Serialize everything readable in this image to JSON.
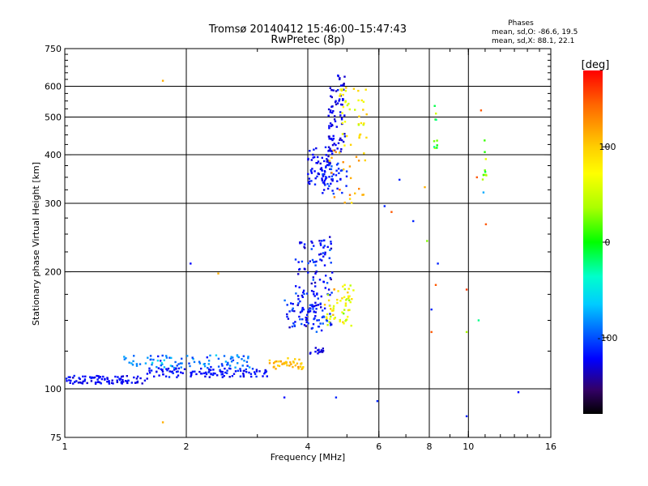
{
  "chart_data": {
    "type": "scatter",
    "title": "Tromsø 20140412 15:46:00–15:47:43",
    "subtitle": "RwPretec (8p)",
    "xlabel": "Frequency [MHz]",
    "ylabel": "Stationary phase Virtual Height [km]",
    "xscale": "log",
    "yscale": "log",
    "xlim": [
      1,
      16
    ],
    "ylim": [
      75,
      750
    ],
    "grid": true,
    "x_ticks": [
      1,
      2,
      4,
      6,
      8,
      10,
      16
    ],
    "x_tick_labels": [
      "1",
      "2",
      "4",
      "6",
      "8",
      "10",
      "16"
    ],
    "y_ticks": [
      75,
      100,
      200,
      300,
      400,
      500,
      600,
      750
    ],
    "y_tick_labels": [
      "75",
      "100",
      "200",
      "300",
      "400",
      "500",
      "600",
      "750"
    ],
    "grid_x": [
      2,
      4,
      6,
      8,
      10
    ],
    "grid_y": [
      100,
      200,
      300,
      400,
      500,
      600
    ],
    "colorbar": {
      "title": "[deg]",
      "range": [
        -180,
        180
      ],
      "ticks": [
        100,
        0,
        -100
      ],
      "tick_labels": [
        "100",
        "0",
        "-100"
      ]
    },
    "legend": {
      "title": "Phases",
      "lines": [
        "mean, sd,O: -86.6, 19.5",
        "mean, sd,X: 88.1, 22.1"
      ],
      "placement": "top-right"
    },
    "clusters": [
      {
        "f1": 1.0,
        "f2": 1.6,
        "h1": 103,
        "h2": 108,
        "phase": -112,
        "phase_sd": 10,
        "n": 90
      },
      {
        "f1": 1.6,
        "f2": 3.2,
        "h1": 107,
        "h2": 113,
        "phase": -108,
        "phase_sd": 12,
        "n": 110
      },
      {
        "f1": 1.4,
        "f2": 2.9,
        "h1": 113,
        "h2": 122,
        "phase": -75,
        "phase_sd": 25,
        "n": 90
      },
      {
        "f1": 3.2,
        "f2": 3.9,
        "h1": 112,
        "h2": 120,
        "phase": 115,
        "phase_sd": 15,
        "n": 40
      },
      {
        "f1": 3.5,
        "f2": 4.6,
        "h1": 140,
        "h2": 180,
        "phase": -105,
        "phase_sd": 20,
        "n": 110
      },
      {
        "f1": 3.7,
        "f2": 4.6,
        "h1": 180,
        "h2": 250,
        "phase": -110,
        "phase_sd": 25,
        "n": 70
      },
      {
        "f1": 4.0,
        "f2": 4.4,
        "h1": 123,
        "h2": 128,
        "phase": -120,
        "phase_sd": 8,
        "n": 14
      },
      {
        "f1": 4.4,
        "f2": 5.2,
        "h1": 145,
        "h2": 185,
        "phase": 75,
        "phase_sd": 40,
        "n": 60
      },
      {
        "f1": 4.0,
        "f2": 4.6,
        "h1": 335,
        "h2": 420,
        "phase": -110,
        "phase_sd": 12,
        "n": 70
      },
      {
        "f1": 4.5,
        "f2": 4.95,
        "h1": 400,
        "h2": 640,
        "phase": -115,
        "phase_sd": 12,
        "n": 80
      },
      {
        "f1": 4.3,
        "f2": 5.0,
        "h1": 315,
        "h2": 380,
        "phase": -100,
        "phase_sd": 15,
        "n": 40
      },
      {
        "f1": 4.8,
        "f2": 5.6,
        "h1": 400,
        "h2": 600,
        "phase": 85,
        "phase_sd": 30,
        "n": 40
      },
      {
        "f1": 4.5,
        "f2": 5.6,
        "h1": 300,
        "h2": 430,
        "phase": 120,
        "phase_sd": 20,
        "n": 25
      },
      {
        "f1": 8.2,
        "f2": 8.4,
        "h1": 400,
        "h2": 560,
        "phase": 15,
        "phase_sd": 80,
        "n": 10
      },
      {
        "f1": 10.8,
        "f2": 11.1,
        "h1": 330,
        "h2": 460,
        "phase": 40,
        "phase_sd": 60,
        "n": 10
      }
    ],
    "points": [
      {
        "f": 1.75,
        "h": 620,
        "phase": 120
      },
      {
        "f": 1.75,
        "h": 82,
        "phase": 120
      },
      {
        "f": 2.05,
        "h": 210,
        "phase": -110
      },
      {
        "f": 2.4,
        "h": 198,
        "phase": 120
      },
      {
        "f": 3.5,
        "h": 95,
        "phase": -110
      },
      {
        "f": 4.7,
        "h": 95,
        "phase": -100
      },
      {
        "f": 5.95,
        "h": 93,
        "phase": -100
      },
      {
        "f": 6.2,
        "h": 295,
        "phase": -100
      },
      {
        "f": 6.45,
        "h": 285,
        "phase": 150
      },
      {
        "f": 6.75,
        "h": 345,
        "phase": -100
      },
      {
        "f": 7.3,
        "h": 270,
        "phase": -100
      },
      {
        "f": 7.8,
        "h": 330,
        "phase": 120
      },
      {
        "f": 7.9,
        "h": 240,
        "phase": 30
      },
      {
        "f": 8.4,
        "h": 210,
        "phase": -100
      },
      {
        "f": 8.3,
        "h": 185,
        "phase": 150
      },
      {
        "f": 8.1,
        "h": 160,
        "phase": -100
      },
      {
        "f": 8.1,
        "h": 140,
        "phase": 150
      },
      {
        "f": 9.9,
        "h": 85,
        "phase": -100
      },
      {
        "f": 9.9,
        "h": 180,
        "phase": 160
      },
      {
        "f": 9.9,
        "h": 140,
        "phase": 40
      },
      {
        "f": 10.5,
        "h": 350,
        "phase": 150
      },
      {
        "f": 10.6,
        "h": 150,
        "phase": -20
      },
      {
        "f": 10.75,
        "h": 520,
        "phase": 150
      },
      {
        "f": 11.05,
        "h": 265,
        "phase": 150
      },
      {
        "f": 10.9,
        "h": 320,
        "phase": -60
      },
      {
        "f": 13.3,
        "h": 98,
        "phase": -110
      }
    ]
  }
}
